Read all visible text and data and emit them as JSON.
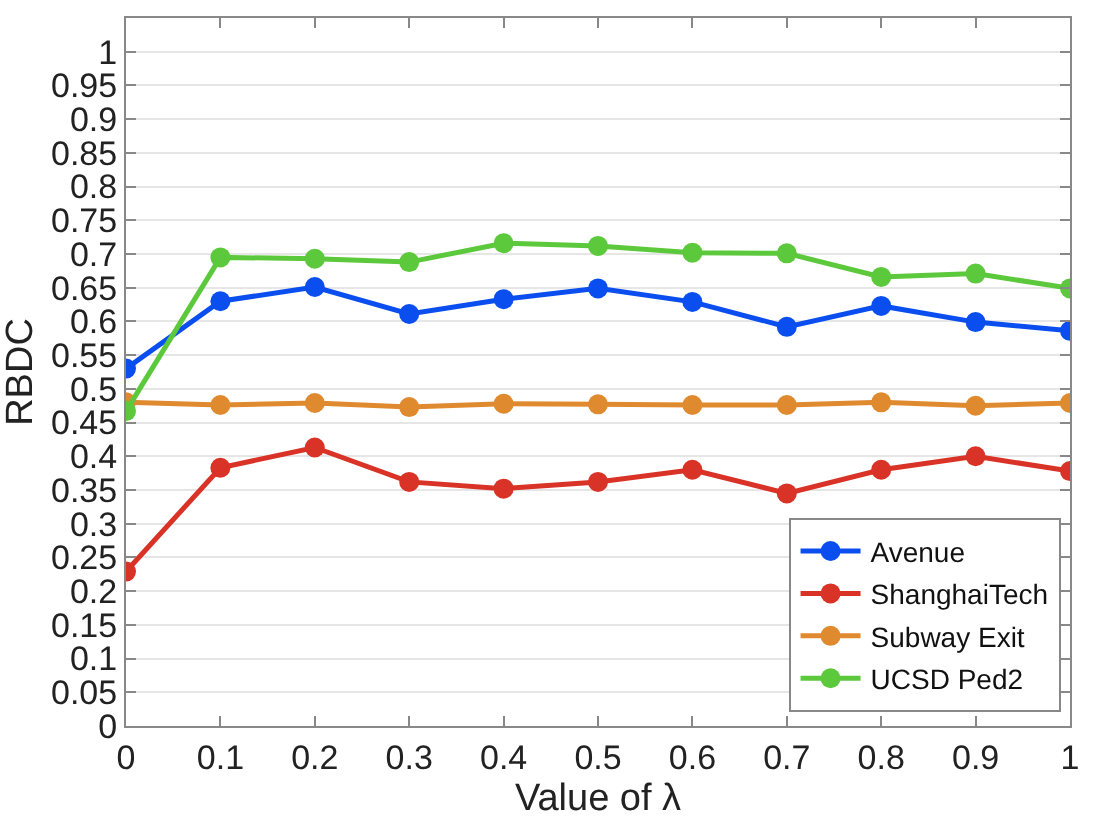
{
  "chart_data": {
    "type": "line",
    "xlabel": "Value of λ",
    "ylabel": "RBDC",
    "x": [
      0,
      0.1,
      0.2,
      0.3,
      0.4,
      0.5,
      0.6,
      0.7,
      0.8,
      0.9,
      1
    ],
    "series": [
      {
        "name": "Avenue",
        "color": "#0a4ef0",
        "values": [
          0.53,
          0.63,
          0.651,
          0.611,
          0.633,
          0.649,
          0.629,
          0.592,
          0.623,
          0.599,
          0.586
        ]
      },
      {
        "name": "ShanghaiTech",
        "color": "#d93226",
        "values": [
          0.229,
          0.383,
          0.413,
          0.362,
          0.352,
          0.362,
          0.38,
          0.345,
          0.38,
          0.4,
          0.378
        ]
      },
      {
        "name": "Subway Exit",
        "color": "#e08a30",
        "values": [
          0.48,
          0.476,
          0.479,
          0.473,
          0.478,
          0.477,
          0.476,
          0.476,
          0.48,
          0.475,
          0.479
        ]
      },
      {
        "name": "UCSD Ped2",
        "color": "#5cc83c",
        "values": [
          0.467,
          0.695,
          0.693,
          0.688,
          0.716,
          0.712,
          0.702,
          0.701,
          0.666,
          0.671,
          0.649
        ]
      }
    ],
    "xlim": [
      0,
      1
    ],
    "xticks": [
      0,
      0.1,
      0.2,
      0.3,
      0.4,
      0.5,
      0.6,
      0.7,
      0.8,
      0.9,
      1
    ],
    "ylim": [
      0,
      1.05
    ],
    "yticks": [
      0,
      0.05,
      0.1,
      0.15,
      0.2,
      0.25,
      0.3,
      0.35,
      0.4,
      0.45,
      0.5,
      0.55,
      0.6,
      0.65,
      0.7,
      0.75,
      0.8,
      0.85,
      0.9,
      0.95,
      1
    ],
    "grid": "y",
    "legend": "bottom right",
    "marker": "circle",
    "line_style": "solid"
  }
}
